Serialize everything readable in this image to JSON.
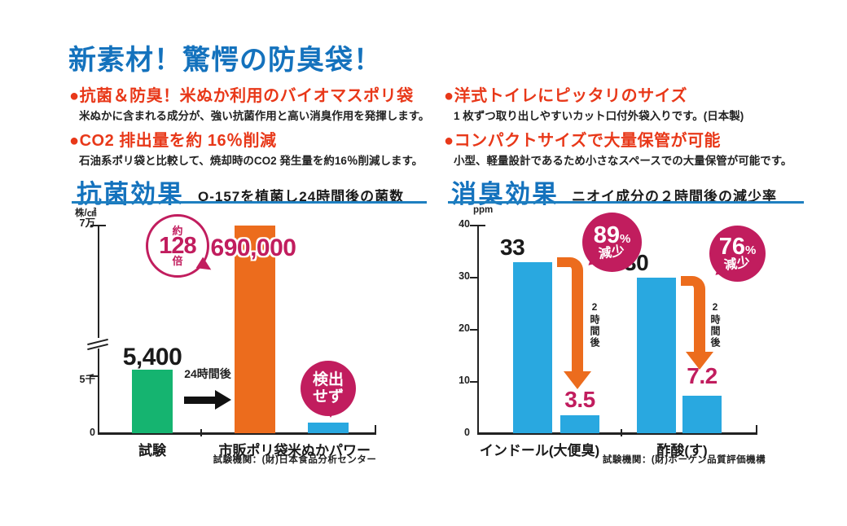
{
  "header": {
    "title": "新素材！驚愕の防臭袋！",
    "features_left": [
      {
        "heading": "●抗菌＆防臭！米ぬか利用のバイオマスポリ袋",
        "body": "米ぬかに含まれる成分が、強い抗菌作用と高い消臭作用を発揮します。"
      },
      {
        "heading": "●CO2 排出量を約 16％削減",
        "body": "石油系ポリ袋と比較して、焼却時のCO2 発生量を約16％削減します。"
      }
    ],
    "features_right": [
      {
        "heading": "●洋式トイレにピッタリのサイズ",
        "body": "1 枚ずつ取り出しやすいカット口付外袋入りです。(日本製)"
      },
      {
        "heading": "●コンパクトサイズで大量保管が可能",
        "body": "小型、軽量設計であるため小さなスペースでの大量保管が可能です。"
      }
    ]
  },
  "colors": {
    "title_blue": "#1472bd",
    "heading_red": "#e83819",
    "crimson": "#c11d5e",
    "orange": "#ec6c1d",
    "green": "#15b470",
    "light_blue": "#29a8e0",
    "underline_blue": "#1e7fc0"
  },
  "chart_data": [
    {
      "type": "bar",
      "title": "抗菌効果",
      "subtitle": "O-157を植菌し24時間後の菌数",
      "unit": "株/㎠",
      "yticks": [
        "7万",
        "5千",
        "0"
      ],
      "axis_break_between": [
        "5千",
        "7万"
      ],
      "categories": [
        "試験",
        "市販ポリ袋",
        "米ぬかパワー"
      ],
      "values": [
        5400,
        690000,
        null
      ],
      "value_labels": [
        "5,400",
        "690,000",
        "検出せず"
      ],
      "badge_lines": [
        "検出",
        "せず"
      ],
      "multiplier_badge": {
        "prefix": "約",
        "number": "128",
        "suffix": "倍"
      },
      "arrow_label": "24時間後",
      "source": "試験機関：(財)日本食品分析センター"
    },
    {
      "type": "bar",
      "title": "消臭効果",
      "subtitle": "ニオイ成分の２時間後の減少率",
      "unit": "ppm",
      "ylim": [
        0,
        40
      ],
      "yticks": [
        "40",
        "30",
        "20",
        "10",
        "0"
      ],
      "groups": [
        {
          "category": "インドール(大便臭)",
          "before": 33,
          "after": 3.5,
          "before_label": "33",
          "after_label": "3.5",
          "badge": {
            "number": "89",
            "percent": "%",
            "word": "減少"
          },
          "arrow_label": "2時間後"
        },
        {
          "category": "酢酸(す)",
          "before": 30,
          "after": 7.2,
          "before_label": "30",
          "after_label": "7.2",
          "badge": {
            "number": "76",
            "percent": "%",
            "word": "減少"
          },
          "arrow_label": "2時間後"
        }
      ],
      "source": "試験機関：(財)ボーケン品質評価機構"
    }
  ]
}
